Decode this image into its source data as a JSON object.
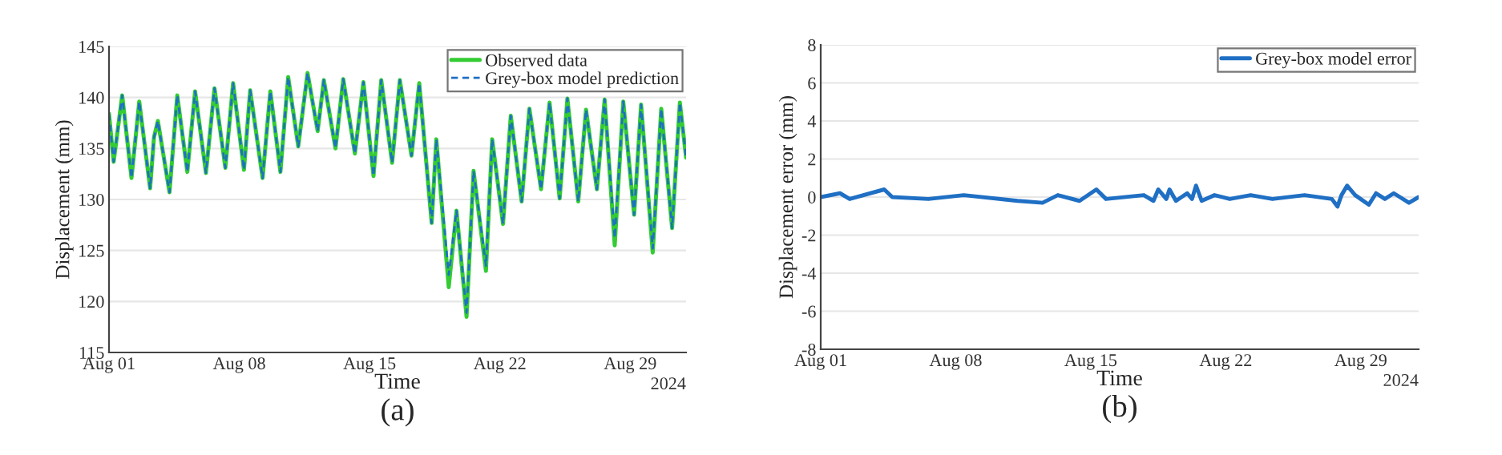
{
  "chart_data": [
    {
      "type": "line",
      "xlabel": "Time",
      "ylabel": "Displacement (mm)",
      "annotations": [
        "2024",
        "(a)"
      ],
      "xlim": [
        "2024-08-01",
        "2024-09-01"
      ],
      "xticks": [
        {
          "value": "2024-08-01",
          "label": "Aug 01"
        },
        {
          "value": "2024-08-08",
          "label": "Aug 08"
        },
        {
          "value": "2024-08-15",
          "label": "Aug 15"
        },
        {
          "value": "2024-08-22",
          "label": "Aug 22"
        },
        {
          "value": "2024-08-29",
          "label": "Aug 29"
        }
      ],
      "ylim": [
        115,
        145
      ],
      "yticks": [
        115,
        120,
        125,
        130,
        135,
        140,
        145
      ],
      "grid": "y",
      "legend": "top right",
      "x": [
        "2024-08-01T00:00",
        "2024-08-01T06:00",
        "2024-08-01T17:00",
        "2024-08-02T05:00",
        "2024-08-02T15:00",
        "2024-08-03T05:00",
        "2024-08-03T10:00",
        "2024-08-03T15:00",
        "2024-08-04T06:00",
        "2024-08-04T16:00",
        "2024-08-05T05:00",
        "2024-08-05T15:00",
        "2024-08-06T05:00",
        "2024-08-06T16:00",
        "2024-08-07T06:00",
        "2024-08-07T16:00",
        "2024-08-08T06:00",
        "2024-08-08T14:00",
        "2024-08-09T06:00",
        "2024-08-09T16:00",
        "2024-08-10T05:00",
        "2024-08-10T15:00",
        "2024-08-11T04:00",
        "2024-08-11T16:00",
        "2024-08-12T05:00",
        "2024-08-12T13:00",
        "2024-08-13T04:00",
        "2024-08-13T14:00",
        "2024-08-14T05:00",
        "2024-08-14T16:00",
        "2024-08-15T05:00",
        "2024-08-15T15:00",
        "2024-08-16T05:00",
        "2024-08-16T15:00",
        "2024-08-17T06:00",
        "2024-08-17T16:00",
        "2024-08-18T08:00",
        "2024-08-18T14:00",
        "2024-08-19T06:00",
        "2024-08-19T16:00",
        "2024-08-20T05:00",
        "2024-08-20T14:00",
        "2024-08-21T06:00",
        "2024-08-21T14:00",
        "2024-08-22T04:00",
        "2024-08-22T14:00",
        "2024-08-23T04:00",
        "2024-08-23T14:00",
        "2024-08-24T05:00",
        "2024-08-24T16:00",
        "2024-08-25T05:00",
        "2024-08-25T15:00",
        "2024-08-26T05:00",
        "2024-08-26T15:00",
        "2024-08-27T05:00",
        "2024-08-27T15:00",
        "2024-08-28T04:00",
        "2024-08-28T15:00",
        "2024-08-29T05:00",
        "2024-08-29T14:00",
        "2024-08-30T05:00",
        "2024-08-30T16:00",
        "2024-08-31T06:00",
        "2024-08-31T16:00",
        "2024-09-01T00:00"
      ],
      "series": [
        {
          "name": "Observed data",
          "color": "#33cc33",
          "line_style": "solid",
          "values": [
            138.4,
            133.7,
            140.2,
            132.1,
            139.6,
            131.1,
            136.1,
            137.7,
            130.7,
            140.2,
            132.7,
            140.6,
            132.6,
            140.9,
            133.1,
            141.4,
            132.9,
            140.7,
            132.1,
            140.6,
            132.7,
            142.0,
            135.2,
            142.4,
            136.7,
            141.7,
            135.0,
            141.8,
            134.5,
            141.5,
            132.3,
            141.7,
            133.6,
            141.7,
            134.3,
            141.4,
            127.7,
            135.9,
            121.4,
            128.9,
            118.5,
            132.8,
            123.0,
            135.9,
            127.6,
            138.2,
            129.8,
            138.9,
            131.0,
            139.5,
            130.1,
            139.9,
            129.8,
            138.8,
            131.0,
            139.8,
            125.5,
            139.6,
            128.5,
            139.3,
            124.8,
            138.9,
            127.2,
            139.5,
            134.1
          ]
        },
        {
          "name": "Grey-box model prediction",
          "color": "#1f6fc4",
          "line_style": "dashed",
          "values": [
            138.4,
            133.7,
            140.2,
            132.1,
            139.6,
            131.1,
            136.1,
            137.7,
            130.7,
            140.2,
            132.7,
            140.6,
            132.6,
            140.9,
            133.1,
            141.4,
            132.9,
            140.7,
            132.1,
            140.6,
            132.7,
            142.0,
            135.2,
            142.4,
            136.7,
            141.7,
            135.0,
            141.8,
            134.5,
            141.5,
            132.3,
            141.7,
            133.6,
            141.7,
            134.3,
            141.4,
            127.7,
            135.9,
            122.6,
            128.9,
            118.9,
            132.8,
            123.5,
            135.9,
            127.6,
            138.2,
            129.8,
            138.9,
            131.0,
            139.5,
            130.1,
            139.9,
            129.8,
            138.8,
            131.0,
            139.8,
            126.2,
            139.6,
            128.5,
            139.3,
            125.2,
            138.9,
            127.2,
            139.5,
            134.1
          ]
        }
      ]
    },
    {
      "type": "line",
      "xlabel": "Time",
      "ylabel": "Displacement error (mm)",
      "annotations": [
        "2024",
        "(b)"
      ],
      "xlim": [
        "2024-08-01",
        "2024-09-01"
      ],
      "xticks": [
        {
          "value": "2024-08-01",
          "label": "Aug 01"
        },
        {
          "value": "2024-08-08",
          "label": "Aug 08"
        },
        {
          "value": "2024-08-15",
          "label": "Aug 15"
        },
        {
          "value": "2024-08-22",
          "label": "Aug 22"
        },
        {
          "value": "2024-08-29",
          "label": "Aug 29"
        }
      ],
      "ylim": [
        -8,
        8
      ],
      "yticks": [
        -8,
        -6,
        -4,
        -2,
        0,
        2,
        4,
        6,
        8
      ],
      "grid": "y",
      "legend": "top right",
      "x": [
        "2024-08-01T00:00",
        "2024-08-02T00:00",
        "2024-08-02T12:00",
        "2024-08-04T07:00",
        "2024-08-04T17:00",
        "2024-08-06T14:00",
        "2024-08-08T10:00",
        "2024-08-11T05:00",
        "2024-08-12T12:00",
        "2024-08-13T07:00",
        "2024-08-14T10:00",
        "2024-08-15T07:00",
        "2024-08-15T19:00",
        "2024-08-17T18:00",
        "2024-08-18T06:00",
        "2024-08-18T12:00",
        "2024-08-18T22:00",
        "2024-08-19T02:00",
        "2024-08-19T10:00",
        "2024-08-20T00:00",
        "2024-08-20T06:00",
        "2024-08-20T11:00",
        "2024-08-20T18:00",
        "2024-08-21T10:00",
        "2024-08-22T05:00",
        "2024-08-23T07:00",
        "2024-08-24T10:00",
        "2024-08-26T02:00",
        "2024-08-27T12:00",
        "2024-08-27T19:00",
        "2024-08-28T00:00",
        "2024-08-28T07:00",
        "2024-08-28T17:00",
        "2024-08-29T10:00",
        "2024-08-29T19:00",
        "2024-08-30T06:00",
        "2024-08-30T17:00",
        "2024-08-31T12:00",
        "2024-09-01T00:00"
      ],
      "series": [
        {
          "name": "Grey-box model error",
          "color": "#1f6fc4",
          "line_style": "solid",
          "values": [
            0,
            0.2,
            -0.1,
            0.4,
            0,
            -0.1,
            0.1,
            -0.2,
            -0.3,
            0.1,
            -0.2,
            0.4,
            -0.1,
            0.1,
            -0.2,
            0.4,
            -0.1,
            0.4,
            -0.2,
            0.2,
            -0.1,
            0.6,
            -0.2,
            0.1,
            -0.1,
            0.1,
            -0.1,
            0.1,
            -0.1,
            -0.5,
            0.1,
            0.6,
            0.1,
            -0.4,
            0.2,
            -0.1,
            0.2,
            -0.3,
            0
          ]
        }
      ]
    }
  ]
}
